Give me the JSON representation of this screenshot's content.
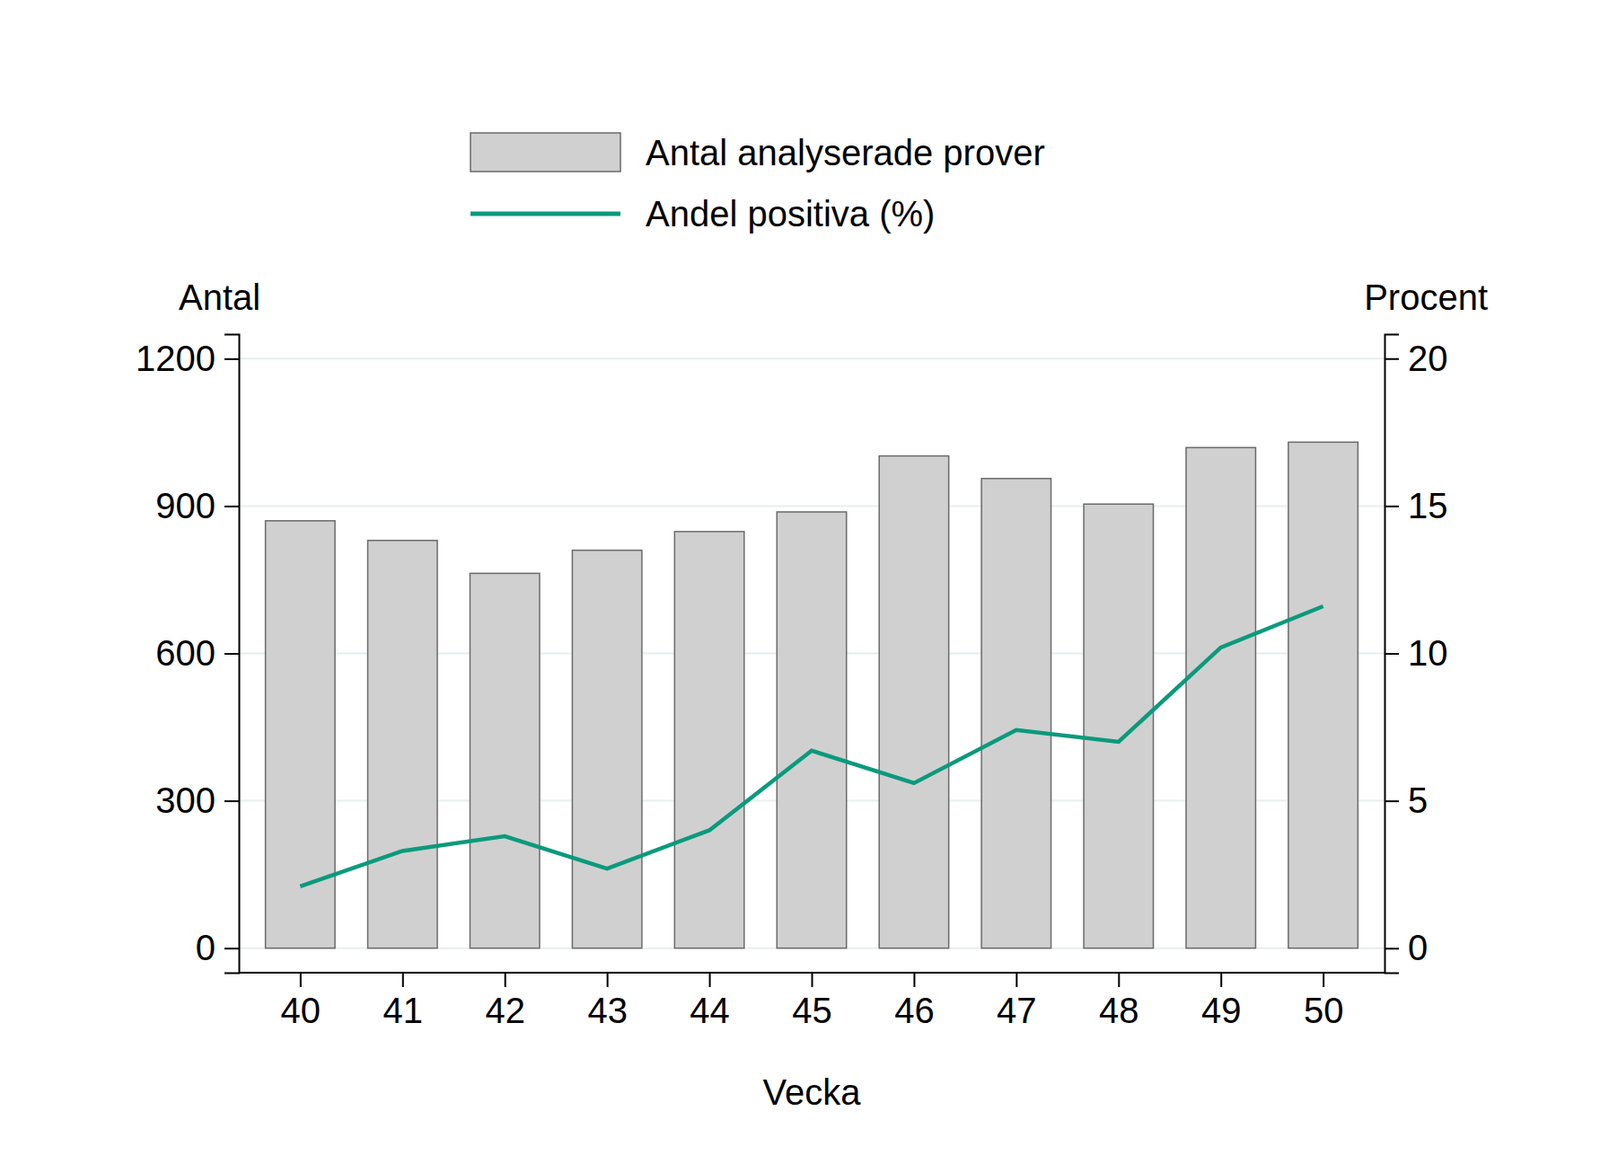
{
  "chart_data": {
    "type": "bar",
    "x_label": "Vecka",
    "y_label": "Antal",
    "y2_label": "Procent",
    "categories": [
      40,
      41,
      42,
      43,
      44,
      45,
      46,
      47,
      48,
      49,
      50
    ],
    "series": [
      {
        "name": "Antal analyserade prover",
        "type": "bar",
        "color": "#d0d0d0",
        "values": [
          870,
          830,
          763,
          810,
          848,
          888,
          1002,
          956,
          904,
          1019,
          1030
        ]
      },
      {
        "name": "Andel positiva (%)",
        "type": "line",
        "axis": "y2",
        "color": "#0a9a7c",
        "values": [
          2.1,
          3.3,
          3.8,
          2.7,
          4.0,
          6.7,
          5.6,
          7.4,
          7.0,
          10.2,
          11.6
        ]
      }
    ],
    "ylim": [
      -50,
      1250
    ],
    "yticks": [
      0,
      300,
      600,
      900,
      1200
    ],
    "y2lim": [
      -0.83,
      20.83
    ],
    "y2ticks": [
      0,
      5,
      10,
      15,
      20
    ],
    "grid": true,
    "legend": "top"
  }
}
